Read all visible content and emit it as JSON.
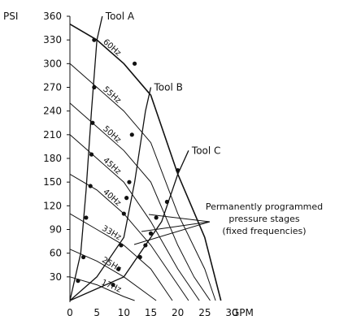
{
  "chart_data": {
    "type": "line",
    "y_unit": "PSI",
    "x_unit": "GPM",
    "xlim": [
      0,
      30
    ],
    "ylim": [
      0,
      360
    ],
    "x_ticks": [
      "0",
      "5",
      "10",
      "15",
      "20",
      "25",
      "30"
    ],
    "y_ticks": [
      "360",
      "330",
      "300",
      "270",
      "240",
      "210",
      "180",
      "150",
      "120",
      "90",
      "60",
      "30"
    ],
    "pump_curves": [
      {
        "name": "60Hz",
        "points": [
          [
            0,
            350
          ],
          [
            5,
            330
          ],
          [
            10,
            300
          ],
          [
            15,
            260
          ],
          [
            20,
            160
          ],
          [
            25,
            80
          ],
          [
            28,
            0
          ]
        ]
      },
      {
        "name": "55Hz",
        "points": [
          [
            0,
            300
          ],
          [
            5,
            270
          ],
          [
            10,
            240
          ],
          [
            15,
            200
          ],
          [
            20,
            110
          ],
          [
            25,
            40
          ],
          [
            27,
            0
          ]
        ]
      },
      {
        "name": "50Hz",
        "points": [
          [
            0,
            250
          ],
          [
            5,
            220
          ],
          [
            10,
            190
          ],
          [
            15,
            150
          ],
          [
            20,
            70
          ],
          [
            23,
            30
          ],
          [
            26,
            0
          ]
        ]
      },
      {
        "name": "45Hz",
        "points": [
          [
            0,
            210
          ],
          [
            5,
            180
          ],
          [
            10,
            150
          ],
          [
            15,
            100
          ],
          [
            20,
            40
          ],
          [
            24,
            0
          ]
        ]
      },
      {
        "name": "40Hz",
        "points": [
          [
            0,
            160
          ],
          [
            5,
            140
          ],
          [
            10,
            110
          ],
          [
            15,
            70
          ],
          [
            20,
            20
          ],
          [
            22,
            0
          ]
        ]
      },
      {
        "name": "33Hz",
        "points": [
          [
            0,
            110
          ],
          [
            5,
            90
          ],
          [
            10,
            70
          ],
          [
            15,
            40
          ],
          [
            19,
            0
          ]
        ]
      },
      {
        "name": "25Hz",
        "points": [
          [
            0,
            65
          ],
          [
            5,
            50
          ],
          [
            10,
            30
          ],
          [
            15,
            5
          ],
          [
            16,
            0
          ]
        ]
      },
      {
        "name": "17Hz",
        "points": [
          [
            0,
            30
          ],
          [
            5,
            20
          ],
          [
            10,
            5
          ],
          [
            12,
            0
          ]
        ]
      }
    ],
    "tool_curves": [
      {
        "name": "Tool A",
        "points": [
          [
            0,
            0
          ],
          [
            2,
            60
          ],
          [
            3,
            140
          ],
          [
            4,
            240
          ],
          [
            5,
            330
          ],
          [
            6,
            360
          ]
        ]
      },
      {
        "name": "Tool B",
        "points": [
          [
            0,
            0
          ],
          [
            5,
            30
          ],
          [
            10,
            80
          ],
          [
            12,
            150
          ],
          [
            14,
            240
          ],
          [
            15,
            270
          ]
        ]
      },
      {
        "name": "Tool C",
        "points": [
          [
            0,
            0
          ],
          [
            10,
            30
          ],
          [
            17,
            100
          ],
          [
            20,
            160
          ],
          [
            22,
            190
          ]
        ]
      }
    ],
    "stage_points": [
      [
        4.5,
        330
      ],
      [
        4.5,
        270
      ],
      [
        4.2,
        225
      ],
      [
        4,
        185
      ],
      [
        3.8,
        145
      ],
      [
        3,
        105
      ],
      [
        2.5,
        55
      ],
      [
        1.5,
        25
      ],
      [
        12,
        300
      ],
      [
        11.5,
        210
      ],
      [
        11,
        150
      ],
      [
        10.5,
        130
      ],
      [
        10,
        110
      ],
      [
        9.5,
        70
      ],
      [
        9,
        40
      ],
      [
        8,
        20
      ],
      [
        20,
        165
      ],
      [
        18,
        125
      ],
      [
        16,
        105
      ],
      [
        15,
        85
      ],
      [
        14,
        70
      ],
      [
        13,
        55
      ]
    ],
    "annotation": {
      "lines": [
        "Permanently programmed",
        "pressure stages",
        "(fixed frequencies)"
      ]
    }
  }
}
